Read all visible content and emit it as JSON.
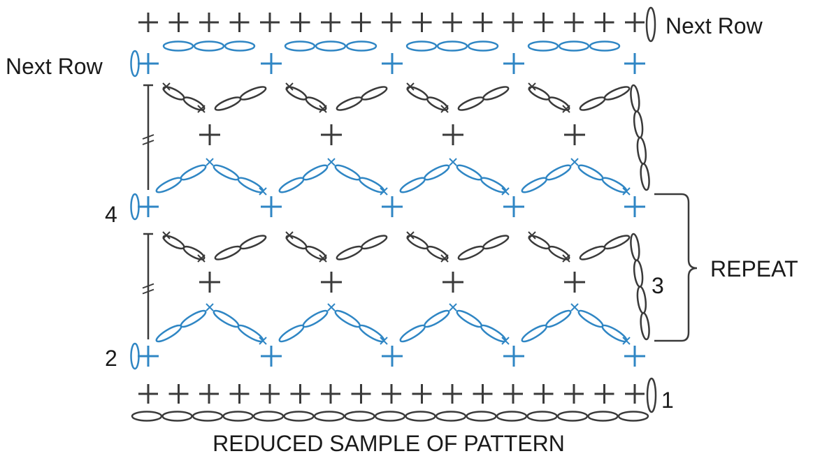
{
  "diagram": {
    "caption": "REDUCED SAMPLE OF PATTERN",
    "labels": {
      "next_row_top": "Next Row",
      "next_row_left": "Next Row",
      "row_4": "4",
      "row_3": "3",
      "row_2": "2",
      "row_1": "1",
      "repeat": "REPEAT"
    },
    "colors": {
      "odd_rows": "#3a3a3a",
      "even_rows": "#2f86c4",
      "text": "#1a1a1a"
    },
    "symbols": {
      "foundation_chain": "chain-oval",
      "single_crochet": "plus",
      "chain_loop": "chain-arc",
      "turning_chain": "vertical-chain"
    }
  }
}
